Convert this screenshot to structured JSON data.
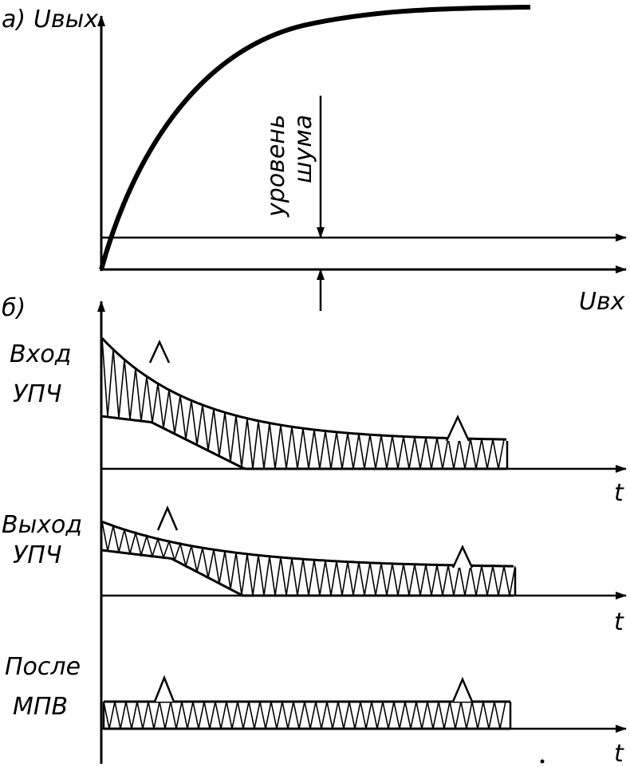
{
  "panel_a": {
    "tag": "а)",
    "y_axis_label": "Uвых",
    "x_axis_label": "Uвх",
    "noise_label_line1": "уровень",
    "noise_label_line2": "шума",
    "noise_level_fraction": 0.16
  },
  "panel_b": {
    "tag": "б)",
    "t_label": "t",
    "traces": [
      {
        "label_line1": "Вход",
        "label_line2": "УПЧ",
        "pulse_1": "near origin",
        "pulse_2": "on noise floor"
      },
      {
        "label_line1": "Выход",
        "label_line2": "УПЧ",
        "pulse_1": "near origin",
        "pulse_2": "on noise floor"
      },
      {
        "label_line1": "После",
        "label_line2": "МПВ",
        "pulse_1": "near origin",
        "pulse_2": "on noise floor"
      }
    ]
  },
  "colors": {
    "ink": "#000000",
    "paper": "#ffffff"
  }
}
